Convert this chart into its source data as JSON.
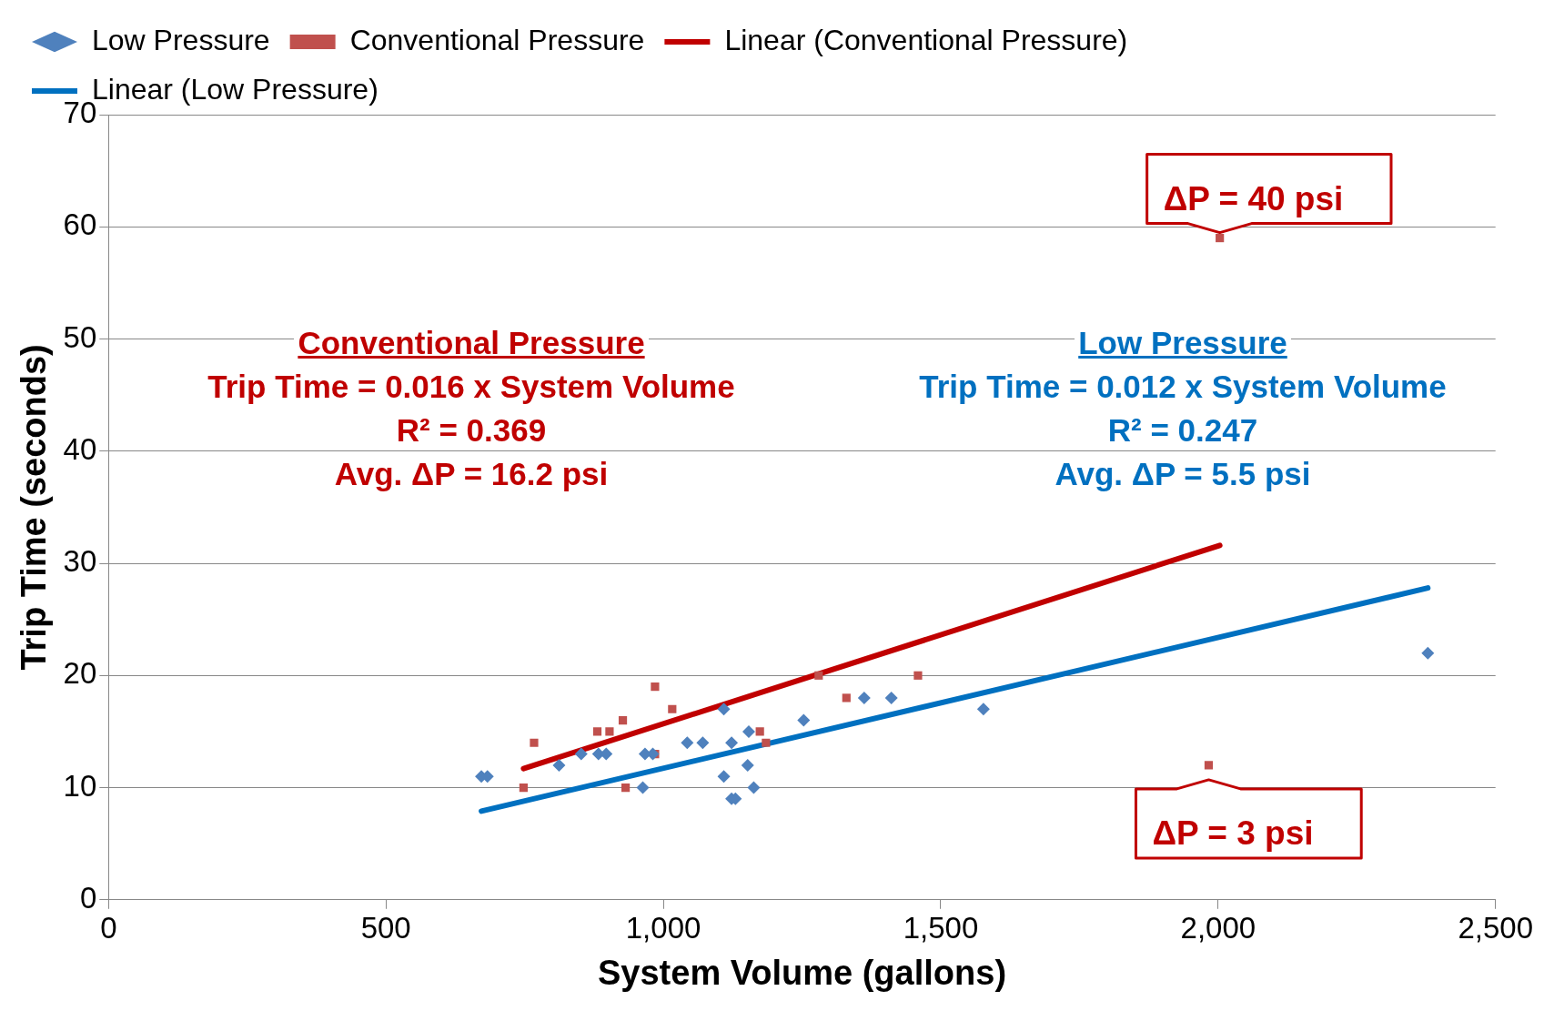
{
  "chart_data": {
    "type": "scatter",
    "xlabel": "System Volume (gallons)",
    "ylabel": "Trip Time (seconds)",
    "xlim": [
      0,
      2500
    ],
    "xticks": [
      0,
      500,
      {
        "value": 1000,
        "label": "1,000"
      },
      {
        "value": 1500,
        "label": "1,500"
      },
      {
        "value": 2000,
        "label": "2,000"
      },
      {
        "value": 2500,
        "label": "2,500"
      }
    ],
    "ylim": [
      0,
      70
    ],
    "yticks": [
      0,
      10,
      20,
      30,
      40,
      50,
      60,
      70
    ],
    "grid": "y",
    "legend": "top",
    "series": [
      {
        "name": "Conventional Pressure",
        "type": "scatter",
        "marker": "square",
        "color": "#c0504d",
        "x": [
          767,
          748,
          881,
          903,
          927,
          932,
          985,
          985,
          1016,
          1174,
          1185,
          1280,
          1330,
          1459,
          2003,
          1983
        ],
        "values": [
          14,
          10,
          15,
          15,
          16,
          10,
          19,
          13,
          17,
          15,
          14,
          20,
          18,
          20,
          59,
          12
        ]
      },
      {
        "name": "Low Pressure",
        "type": "scatter",
        "marker": "diamond",
        "color": "#4f81bd",
        "x": [
          672,
          683,
          812,
          852,
          883,
          897,
          963,
          967,
          981,
          1043,
          1071,
          1109,
          1109,
          1123,
          1123,
          1130,
          1152,
          1154,
          1163,
          1253,
          1362,
          1411,
          1577,
          2378
        ],
        "values": [
          11,
          11,
          12,
          13,
          13,
          13,
          10,
          13,
          13,
          14,
          14,
          17,
          11,
          14,
          9,
          9,
          12,
          15,
          10,
          16,
          18,
          18,
          17,
          22
        ]
      },
      {
        "name": "Linear (Conventional Pressure)",
        "type": "line",
        "marker": "none",
        "color": "#c00000",
        "x": [
          748,
          2003
        ],
        "values": [
          11.7,
          31.6
        ]
      },
      {
        "name": "Linear (Low Pressure)",
        "type": "line",
        "marker": "none",
        "color": "#0070c0",
        "x": [
          672,
          2378
        ],
        "values": [
          7.9,
          27.8
        ]
      }
    ],
    "annotations": [
      "Conventional Pressure",
      "Trip Time = 0.016 x System Volume",
      "R² = 0.369",
      "Avg. ΔP = 16.2 psi",
      "Low Pressure",
      "Trip Time = 0.012 x System Volume",
      "R² = 0.247",
      "Avg. ΔP = 5.5 psi",
      {
        "text": "ΔP = 40 psi",
        "x": 2003,
        "y": 59
      },
      {
        "text": "ΔP = 3 psi",
        "x": 1983,
        "y": 12
      }
    ]
  }
}
